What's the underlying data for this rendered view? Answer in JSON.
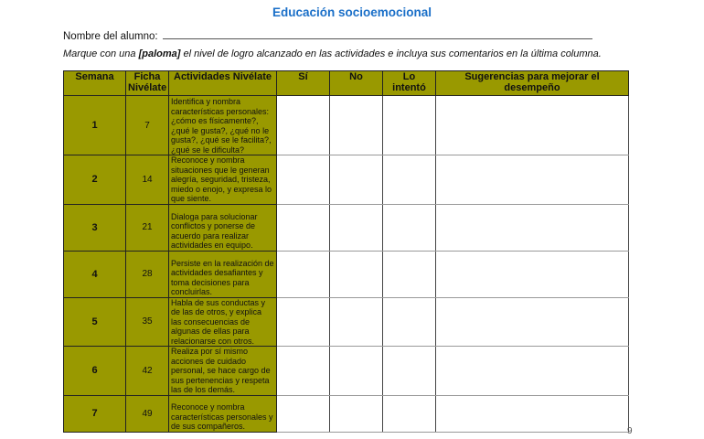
{
  "title": "Educación socioemocional",
  "student_label": "Nombre del alumno:",
  "instructions": {
    "pre": "Marque con una ",
    "bold": "[paloma]",
    "post": " el nivel de logro alcanzado en las actividades e incluya sus comentarios en la última columna."
  },
  "headers": [
    "Semana",
    "Ficha Nivélate",
    "Actividades Nivélate",
    "Sí",
    "No",
    "Lo intentó",
    "Sugerencias para mejorar el desempeño"
  ],
  "rows": [
    {
      "semana": "1",
      "ficha": "7",
      "actividad": "Identifica y nombra características personales: ¿cómo es físicamente?, ¿qué le gusta?, ¿qué no le gusta?, ¿qué se le facilita?, ¿qué se le dificulta?"
    },
    {
      "semana": "2",
      "ficha": "14",
      "actividad": "Reconoce y nombra situaciones que le generan alegría, seguridad, tristeza, miedo o enojo, y expresa lo que siente."
    },
    {
      "semana": "3",
      "ficha": "21",
      "actividad": "Dialoga para solucionar conflictos y ponerse de acuerdo para realizar actividades en equipo."
    },
    {
      "semana": "4",
      "ficha": "28",
      "actividad": "Persiste en la realización de actividades desafiantes y toma decisiones para concluirlas."
    },
    {
      "semana": "5",
      "ficha": "35",
      "actividad": "Habla de sus conductas y de las de otros, y explica las consecuencias de algunas de ellas para relacionarse con otros."
    },
    {
      "semana": "6",
      "ficha": "42",
      "actividad": "Realiza por sí mismo acciones de cuidado personal, se hace cargo de sus pertenencias y respeta las de los demás."
    },
    {
      "semana": "7",
      "ficha": "49",
      "actividad": "Reconoce y nombra características personales y de sus compañeros."
    }
  ],
  "page_number": "9",
  "colors": {
    "header": "#999900",
    "title": "#1a6fc8"
  }
}
